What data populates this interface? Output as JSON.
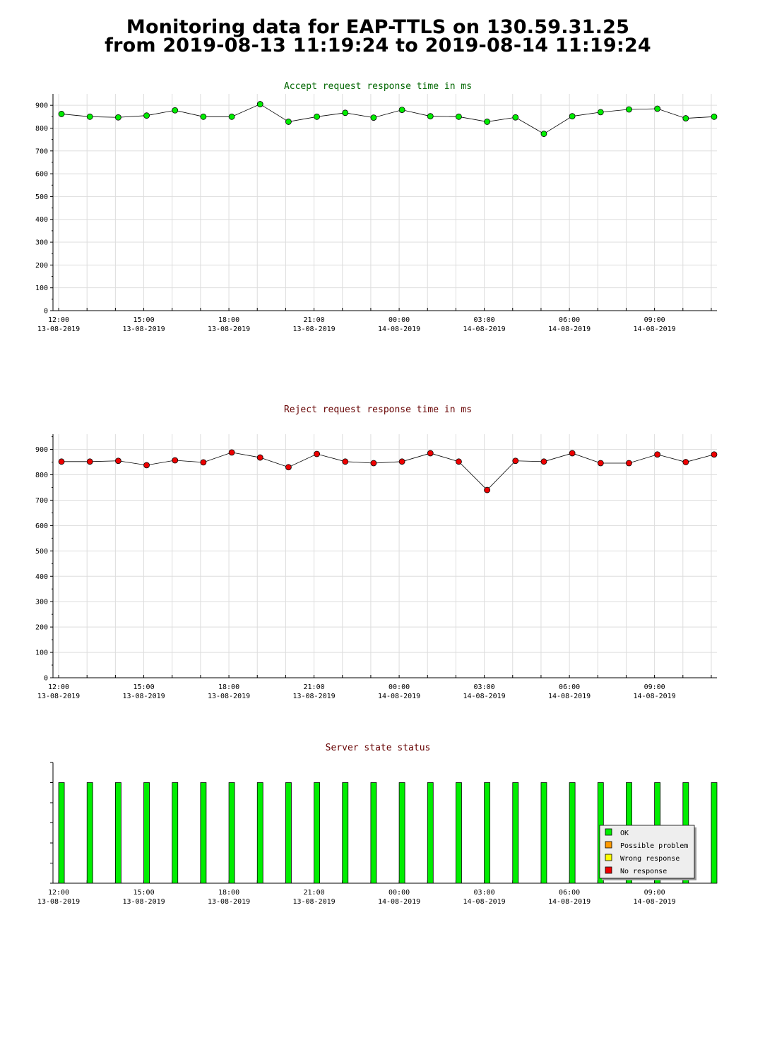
{
  "page": {
    "title_line1": "Monitoring data for EAP-TTLS on 130.59.31.25",
    "title_line2": "from 2019-08-13 11:19:24 to 2019-08-14 11:19:24"
  },
  "colors": {
    "accept": "#00ee00",
    "reject": "#ee0000",
    "accept_title": "#006600",
    "reject_title": "#660000",
    "status_ok": "#00ee00",
    "status_possible": "#ff9900",
    "status_wrong": "#ffff00",
    "status_none": "#ee0000",
    "grid": "#dddddd"
  },
  "x_axis": {
    "start_hour": 11.8,
    "end_hour": 35.2,
    "ticks": [
      {
        "hour": 12,
        "time": "12:00",
        "date": "13-08-2019"
      },
      {
        "hour": 15,
        "time": "15:00",
        "date": "13-08-2019"
      },
      {
        "hour": 18,
        "time": "18:00",
        "date": "13-08-2019"
      },
      {
        "hour": 21,
        "time": "21:00",
        "date": "13-08-2019"
      },
      {
        "hour": 24,
        "time": "00:00",
        "date": "14-08-2019"
      },
      {
        "hour": 27,
        "time": "03:00",
        "date": "14-08-2019"
      },
      {
        "hour": 30,
        "time": "06:00",
        "date": "14-08-2019"
      },
      {
        "hour": 33,
        "time": "09:00",
        "date": "14-08-2019"
      }
    ]
  },
  "chart_data": [
    {
      "type": "line",
      "title": "Accept request response time in ms",
      "ylim": [
        0,
        950
      ],
      "yticks": [
        0,
        100,
        200,
        300,
        400,
        500,
        600,
        700,
        800,
        900
      ],
      "grid": true,
      "x": [
        12.1,
        13.1,
        14.1,
        15.1,
        16.1,
        17.1,
        18.1,
        19.1,
        20.1,
        21.1,
        22.1,
        23.1,
        24.1,
        25.1,
        26.1,
        27.1,
        28.1,
        29.1,
        30.1,
        31.1,
        32.1,
        33.1,
        34.1,
        35.1
      ],
      "series": [
        {
          "values": [
            862,
            850,
            847,
            855,
            878,
            850,
            850,
            905,
            828,
            850,
            867,
            846,
            880,
            852,
            850,
            828,
            847,
            775,
            852,
            870,
            882,
            885,
            843,
            850
          ]
        }
      ]
    },
    {
      "type": "line",
      "title": "Reject request response time in ms",
      "ylim": [
        0,
        960
      ],
      "yticks": [
        0,
        100,
        200,
        300,
        400,
        500,
        600,
        700,
        800,
        900
      ],
      "grid": true,
      "x": [
        12.1,
        13.1,
        14.1,
        15.1,
        16.1,
        17.1,
        18.1,
        19.1,
        20.1,
        21.1,
        22.1,
        23.1,
        24.1,
        25.1,
        26.1,
        27.1,
        28.1,
        29.1,
        30.1,
        31.1,
        32.1,
        33.1,
        34.1,
        35.1
      ],
      "series": [
        {
          "values": [
            852,
            852,
            855,
            838,
            857,
            849,
            888,
            868,
            830,
            882,
            852,
            846,
            852,
            885,
            852,
            740,
            855,
            852,
            885,
            846,
            846,
            880,
            850,
            880
          ]
        }
      ]
    },
    {
      "type": "bar",
      "title": "Server state status",
      "x": [
        12.1,
        13.1,
        14.1,
        15.1,
        16.1,
        17.1,
        18.1,
        19.1,
        20.1,
        21.1,
        22.1,
        23.1,
        24.1,
        25.1,
        26.1,
        27.1,
        28.1,
        29.1,
        30.1,
        31.1,
        32.1,
        33.1,
        34.1,
        35.1
      ],
      "values": [
        5,
        5,
        5,
        5,
        5,
        5,
        5,
        5,
        5,
        5,
        5,
        5,
        5,
        5,
        5,
        5,
        5,
        5,
        5,
        5,
        5,
        5,
        5,
        5
      ],
      "ylim": [
        0,
        6
      ],
      "legend": {
        "position": "bottom-right",
        "entries": [
          "OK",
          "Possible problem",
          "Wrong response",
          "No response"
        ]
      }
    }
  ]
}
